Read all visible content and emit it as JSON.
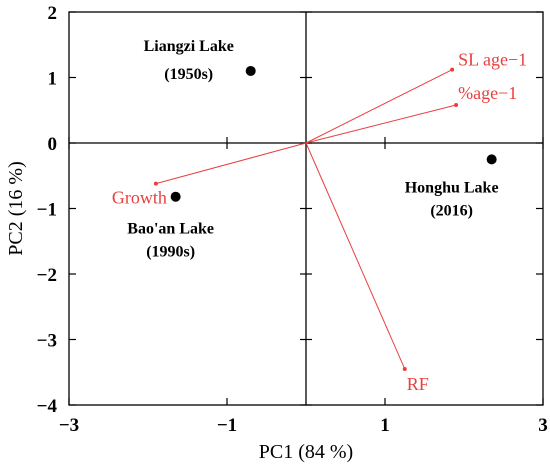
{
  "chart_data": {
    "type": "scatter",
    "title": "",
    "xlabel": "PC1 (84 %)",
    "ylabel": "PC2  (16 %)",
    "xlim": [
      -3,
      3
    ],
    "ylim": [
      -4,
      2
    ],
    "x_ticks": [
      -3,
      -1,
      1,
      3
    ],
    "y_ticks": [
      2,
      1,
      0,
      -1,
      -2,
      -3,
      -4
    ],
    "x_tick_labels": [
      "−3",
      "−1",
      "1",
      "3"
    ],
    "y_tick_labels": [
      "2",
      "1",
      "0",
      "−1",
      "−2",
      "−3",
      "−4"
    ],
    "grid": false,
    "points": [
      {
        "label_line1": "Liangzi Lake",
        "label_line2": "(1950s)",
        "x": -0.7,
        "y": 1.1,
        "label_side": "above-left"
      },
      {
        "label_line1": "Bao'an Lake",
        "label_line2": "(1990s)",
        "x": -1.65,
        "y": -0.82,
        "label_side": "below"
      },
      {
        "label_line1": "Honghu Lake",
        "label_line2": "(2016)",
        "x": 2.35,
        "y": -0.25,
        "label_side": "below-left"
      }
    ],
    "vectors": [
      {
        "name": "SL age−1",
        "x": 1.85,
        "y": 1.12
      },
      {
        "name": "%age−1",
        "x": 1.9,
        "y": 0.58
      },
      {
        "name": "Growth",
        "x": -1.9,
        "y": -0.62
      },
      {
        "name": "RF",
        "x": 1.25,
        "y": -3.45
      }
    ],
    "colors": {
      "points": "#000000",
      "vectors": "#e8403f",
      "axes": "#000000"
    }
  }
}
